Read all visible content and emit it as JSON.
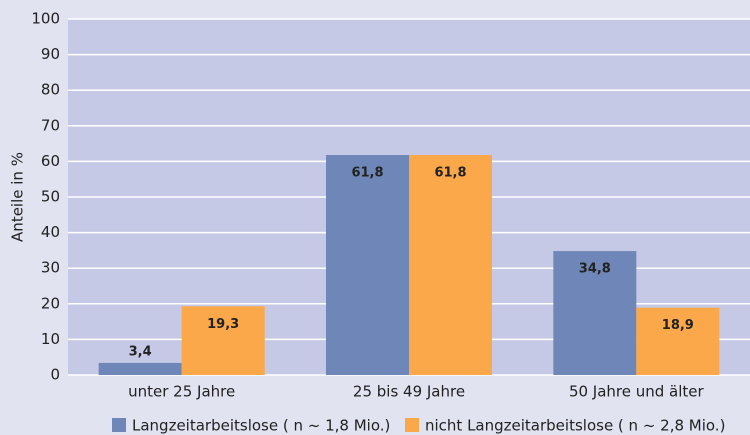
{
  "chart_data": {
    "type": "bar",
    "ylabel": "Anteile in %",
    "categories": [
      "unter 25 Jahre",
      "25 bis 49 Jahre",
      "50 Jahre und älter"
    ],
    "series": [
      {
        "name": "Langzeitarbeitslose ( n ~ 1,8 Mio.)",
        "color": "#6f86b8",
        "values": [
          3.4,
          61.8,
          34.8
        ],
        "value_labels": [
          "3,4",
          "61,8",
          "34,8"
        ]
      },
      {
        "name": "nicht Langzeitarbeitslose ( n ~ 2,8 Mio.)",
        "color": "#fba84a",
        "values": [
          19.3,
          61.8,
          18.9
        ],
        "value_labels": [
          "19,3",
          "61,8",
          "18,9"
        ]
      }
    ],
    "ylim": [
      0,
      100
    ],
    "yticks": [
      0,
      10,
      20,
      30,
      40,
      50,
      60,
      70,
      80,
      90,
      100
    ],
    "grid": true
  }
}
